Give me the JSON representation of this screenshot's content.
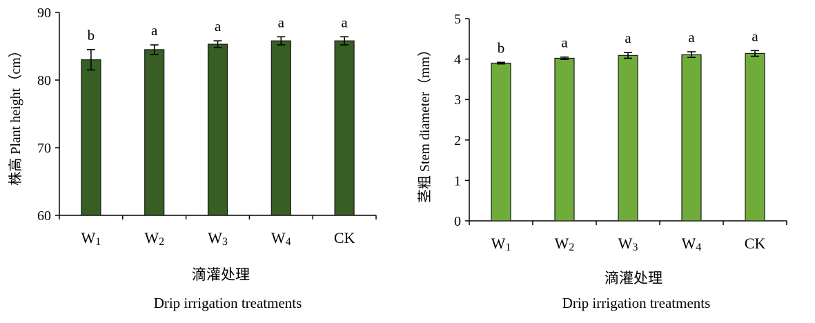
{
  "chart_data": [
    {
      "type": "bar",
      "categories": [
        "W1",
        "W2",
        "W3",
        "W4",
        "CK"
      ],
      "values": [
        83.0,
        84.5,
        85.3,
        85.8,
        85.8
      ],
      "errors": [
        1.5,
        0.7,
        0.5,
        0.6,
        0.6
      ],
      "labels": [
        "b",
        "a",
        "a",
        "a",
        "a"
      ],
      "ylabel": "株高 Plant height（cm）",
      "xlabel_cn": "滴灌处理",
      "xlabel": "Drip irrigation treatments",
      "ylim": [
        60,
        90
      ],
      "yticks": [
        60,
        70,
        80,
        90
      ],
      "bar_color": "#375e23",
      "grid": false
    },
    {
      "type": "bar",
      "categories": [
        "W1",
        "W2",
        "W3",
        "W4",
        "CK"
      ],
      "values": [
        3.9,
        4.02,
        4.09,
        4.11,
        4.14
      ],
      "errors": [
        0.02,
        0.03,
        0.07,
        0.07,
        0.07
      ],
      "labels": [
        "b",
        "a",
        "a",
        "a",
        "a"
      ],
      "ylabel": "茎粗 Stem diameter（mm）",
      "xlabel_cn": "滴灌处理",
      "xlabel": "Drip irrigation treatments",
      "ylim": [
        0,
        5
      ],
      "yticks": [
        0,
        1,
        2,
        3,
        4,
        5
      ],
      "bar_color": "#6fac3a",
      "grid": false
    }
  ]
}
